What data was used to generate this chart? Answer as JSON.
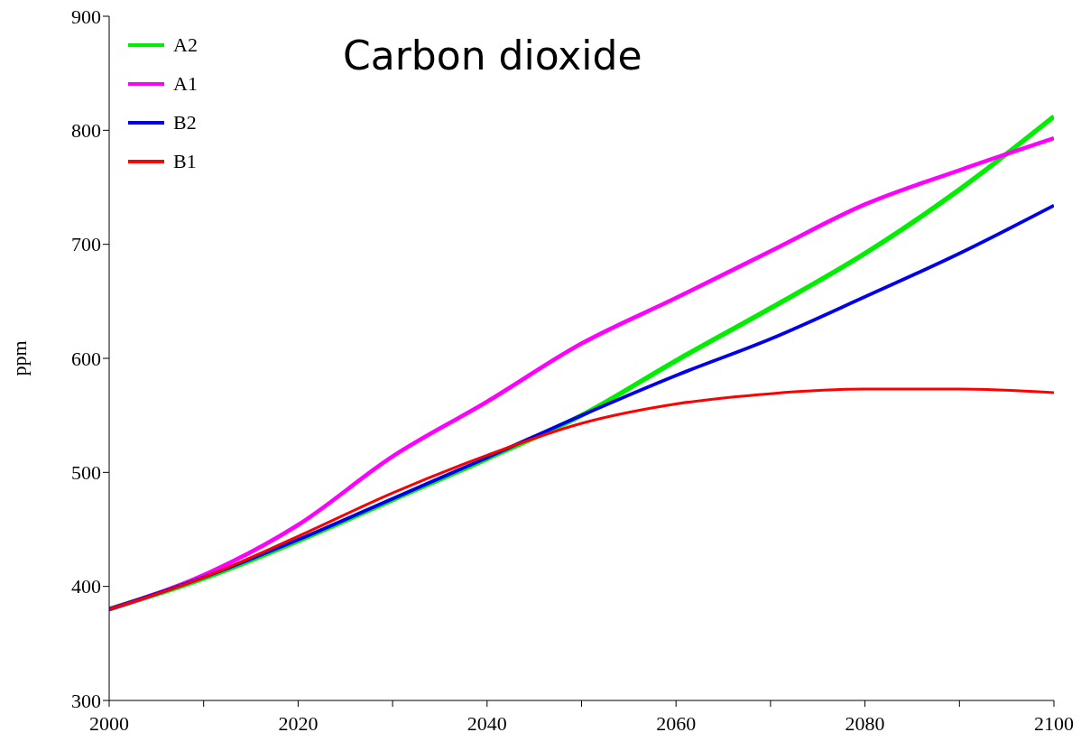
{
  "chart_data": {
    "type": "line",
    "title": "Carbon dioxide",
    "ylabel": "ppm",
    "x": [
      2000,
      2010,
      2020,
      2030,
      2040,
      2050,
      2060,
      2070,
      2080,
      2090,
      2100
    ],
    "series": [
      {
        "name": "A2",
        "color": "#00ee00",
        "values": [
          380,
          407,
          440,
          476,
          512,
          550,
          598,
          644,
          692,
          748,
          812
        ]
      },
      {
        "name": "A1",
        "color": "#ff00ff",
        "values": [
          380,
          410,
          454,
          514,
          562,
          613,
          653,
          694,
          735,
          765,
          793
        ]
      },
      {
        "name": "B2",
        "color": "#0000ee",
        "values": [
          380,
          408,
          441,
          477,
          513,
          550,
          585,
          617,
          654,
          692,
          734
        ]
      },
      {
        "name": "B1",
        "color": "#ff0000",
        "values": [
          380,
          408,
          444,
          482,
          515,
          543,
          560,
          569,
          573,
          573,
          570
        ]
      }
    ],
    "xlim": [
      2000,
      2100
    ],
    "xticks": [
      2000,
      {
        "value": 2010,
        "label": null
      },
      2020,
      {
        "value": 2030,
        "label": null
      },
      2040,
      {
        "value": 2050,
        "label": null
      },
      2060,
      {
        "value": 2070,
        "label": null
      },
      2080,
      {
        "value": 2090,
        "label": null
      },
      2100
    ],
    "ylim": [
      300,
      900
    ],
    "yticks": [
      300,
      400,
      500,
      600,
      700,
      800,
      900
    ],
    "grid": false,
    "legend": "top left",
    "marker": "none",
    "line_style": "solid"
  }
}
